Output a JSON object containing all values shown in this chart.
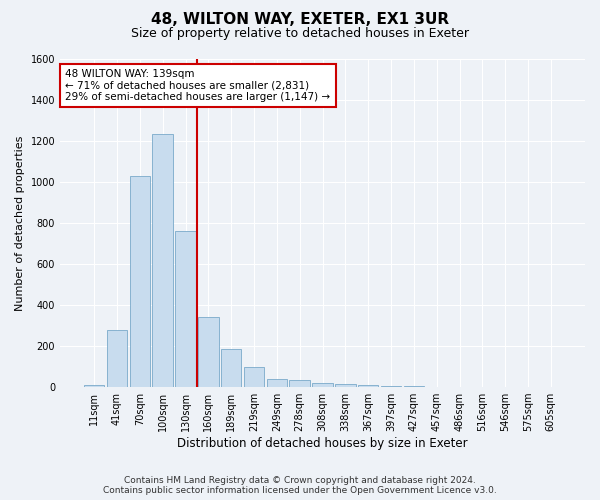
{
  "title": "48, WILTON WAY, EXETER, EX1 3UR",
  "subtitle": "Size of property relative to detached houses in Exeter",
  "xlabel": "Distribution of detached houses by size in Exeter",
  "ylabel": "Number of detached properties",
  "categories": [
    "11sqm",
    "41sqm",
    "70sqm",
    "100sqm",
    "130sqm",
    "160sqm",
    "189sqm",
    "219sqm",
    "249sqm",
    "278sqm",
    "308sqm",
    "338sqm",
    "367sqm",
    "397sqm",
    "427sqm",
    "457sqm",
    "486sqm",
    "516sqm",
    "546sqm",
    "575sqm",
    "605sqm"
  ],
  "values": [
    10,
    280,
    1030,
    1235,
    760,
    340,
    185,
    100,
    40,
    35,
    20,
    15,
    10,
    5,
    3,
    2,
    1,
    0,
    0,
    0,
    0
  ],
  "bar_color": "#c8dcee",
  "bar_edge_color": "#7aaaca",
  "vline_x_index": 4,
  "vline_color": "#cc0000",
  "annotation_line1": "48 WILTON WAY: 139sqm",
  "annotation_line2": "← 71% of detached houses are smaller (2,831)",
  "annotation_line3": "29% of semi-detached houses are larger (1,147) →",
  "annotation_box_color": "#ffffff",
  "annotation_box_edge": "#cc0000",
  "ylim": [
    0,
    1600
  ],
  "yticks": [
    0,
    200,
    400,
    600,
    800,
    1000,
    1200,
    1400,
    1600
  ],
  "footer": "Contains HM Land Registry data © Crown copyright and database right 2024.\nContains public sector information licensed under the Open Government Licence v3.0.",
  "background_color": "#eef2f7",
  "plot_background": "#eef2f7",
  "grid_color": "#ffffff",
  "title_fontsize": 11,
  "subtitle_fontsize": 9,
  "xlabel_fontsize": 8.5,
  "ylabel_fontsize": 8,
  "tick_fontsize": 7,
  "footer_fontsize": 6.5,
  "annotation_fontsize": 7.5
}
